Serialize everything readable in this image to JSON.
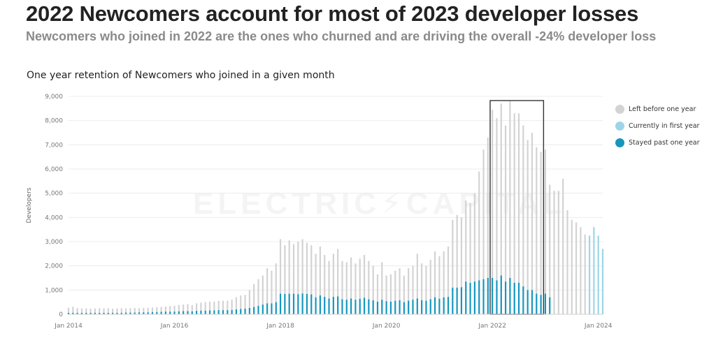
{
  "header": {
    "title": "2022 Newcomers account for most of 2023 developer losses",
    "subtitle": "Newcomers who joined in 2022 are the ones who churned and are driving the overall -24% developer loss"
  },
  "watermark": "ELECTRIC⚡CAPITAL",
  "chart_data": {
    "type": "bar",
    "stacked": true,
    "title": "One year retention of Newcomers who joined in a given month",
    "ylabel": "Developers",
    "ylim": [
      0,
      9000
    ],
    "yticks": [
      "0",
      "1,000",
      "2,000",
      "3,000",
      "4,000",
      "5,000",
      "6,000",
      "7,000",
      "8,000",
      "9,000"
    ],
    "ytick_values": [
      0,
      1000,
      2000,
      3000,
      4000,
      5000,
      6000,
      7000,
      8000,
      9000
    ],
    "xtick_labels": [
      "Jan 2014",
      "Jan 2016",
      "Jan 2018",
      "Jan 2020",
      "Jan 2022",
      "Jan 2024"
    ],
    "xtick_index": [
      0,
      24,
      48,
      72,
      96,
      120
    ],
    "legend_position": "right",
    "series": [
      {
        "name": "Left before one year",
        "color": "#d3d3d3",
        "key": "left"
      },
      {
        "name": "Currently in first year",
        "color": "#9dd5e8",
        "key": "current"
      },
      {
        "name": "Stayed past one year",
        "color": "#1796be",
        "key": "stayed"
      }
    ],
    "months_start": "Jan 2014",
    "totals": [
      270,
      310,
      250,
      240,
      240,
      230,
      240,
      250,
      240,
      250,
      230,
      240,
      250,
      240,
      250,
      260,
      250,
      260,
      270,
      280,
      290,
      300,
      320,
      340,
      350,
      380,
      400,
      420,
      380,
      450,
      480,
      500,
      520,
      520,
      550,
      560,
      560,
      600,
      700,
      780,
      800,
      1000,
      1250,
      1450,
      1600,
      1900,
      1800,
      2100,
      3100,
      2850,
      3050,
      2900,
      3000,
      3100,
      2950,
      2850,
      2500,
      2800,
      2450,
      2200,
      2500,
      2700,
      2200,
      2150,
      2350,
      2100,
      2300,
      2450,
      2200,
      2000,
      1650,
      2150,
      1600,
      1650,
      1800,
      1900,
      1600,
      1900,
      2000,
      2500,
      2100,
      2000,
      2250,
      2600,
      2400,
      2600,
      2800,
      3900,
      4100,
      4000,
      4700,
      4600,
      5000,
      5900,
      6800,
      7300,
      8450,
      8100,
      8700,
      7800,
      8800,
      8300,
      8300,
      7800,
      7200,
      7500,
      6900,
      6700,
      6800,
      5350,
      5100,
      5100,
      5600,
      4300,
      3900,
      3800,
      3600,
      3300,
      3250,
      3600,
      3250,
      2700
    ],
    "stayed": [
      60,
      60,
      60,
      60,
      60,
      60,
      60,
      60,
      60,
      60,
      60,
      60,
      60,
      70,
      70,
      70,
      80,
      80,
      80,
      90,
      90,
      100,
      110,
      110,
      110,
      120,
      130,
      130,
      120,
      140,
      150,
      150,
      160,
      160,
      170,
      170,
      170,
      180,
      200,
      220,
      230,
      260,
      300,
      350,
      400,
      450,
      450,
      500,
      850,
      840,
      850,
      850,
      830,
      860,
      840,
      820,
      700,
      780,
      720,
      650,
      720,
      740,
      620,
      600,
      650,
      600,
      640,
      680,
      620,
      580,
      520,
      600,
      540,
      520,
      560,
      580,
      500,
      560,
      600,
      650,
      580,
      560,
      620,
      700,
      640,
      700,
      720,
      1100,
      1100,
      1120,
      1350,
      1300,
      1350,
      1400,
      1450,
      1500,
      1500,
      1400,
      1600,
      1350,
      1500,
      1300,
      1300,
      1150,
      1000,
      1000,
      850,
      800,
      850,
      700,
      0,
      0,
      0,
      0,
      0,
      0,
      0,
      0,
      0,
      0,
      0,
      0
    ],
    "current_from_index": 118
  }
}
